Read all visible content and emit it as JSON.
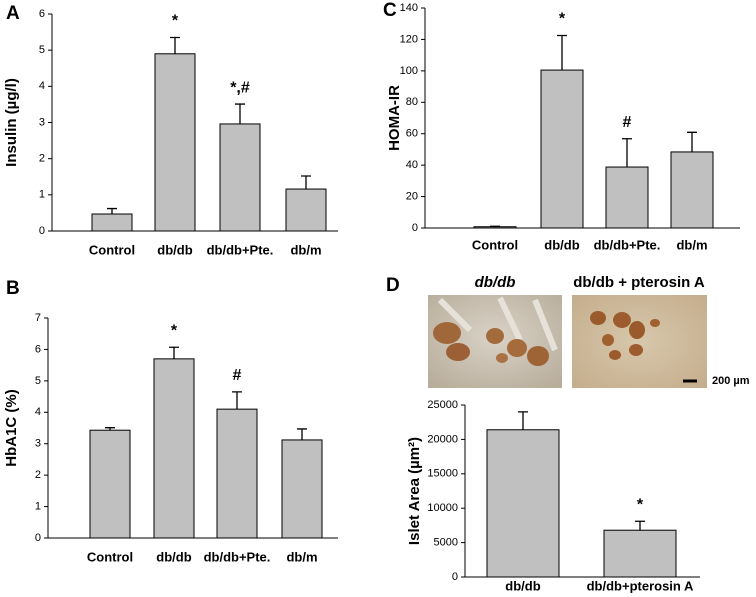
{
  "chart_data": [
    {
      "type": "bar",
      "panel_label": "A",
      "y_label": "Insulin (µg/l)",
      "categories": [
        "Control",
        "db/db",
        "db/db+Pte.",
        "db/m"
      ],
      "values": [
        0.47,
        4.9,
        2.96,
        1.16
      ],
      "errors": [
        0.15,
        0.45,
        0.55,
        0.36
      ],
      "annotations": [
        null,
        "*",
        "*,#",
        null
      ],
      "color": "#c0c0c0",
      "ylim": [
        0,
        6
      ],
      "yticks": [
        0,
        1,
        2,
        3,
        4,
        5,
        6
      ]
    },
    {
      "type": "bar",
      "panel_label": "B",
      "y_label": "HbA1C (%)",
      "categories": [
        "Control",
        "db/db",
        "db/db+Pte.",
        "db/m"
      ],
      "values": [
        3.43,
        5.7,
        4.1,
        3.12
      ],
      "errors": [
        0.08,
        0.37,
        0.55,
        0.35
      ],
      "annotations": [
        null,
        "*",
        "#",
        null
      ],
      "color": "#c0c0c0",
      "ylim": [
        0,
        7
      ],
      "yticks": [
        0,
        1,
        2,
        3,
        4,
        5,
        6,
        7
      ]
    },
    {
      "type": "bar",
      "panel_label": "C",
      "y_label": "HOMA-IR",
      "categories": [
        "Control",
        "db/db",
        "db/db+Pte.",
        "db/m"
      ],
      "values": [
        0.8,
        100.5,
        38.8,
        48.4
      ],
      "errors": [
        0.3,
        22,
        18,
        12.5
      ],
      "annotations": [
        null,
        "*",
        "#",
        null
      ],
      "color": "#c0c0c0",
      "ylim": [
        0,
        140
      ],
      "yticks": [
        0,
        20,
        40,
        60,
        80,
        100,
        120,
        140
      ]
    },
    {
      "type": "bar",
      "panel_label": "D",
      "y_label": "Islet Area (µm²)",
      "image_titles": [
        "db/db",
        "db/db + pterosin A"
      ],
      "scale_label": "200 µm",
      "categories": [
        "db/db",
        "db/db+pterosin A"
      ],
      "values": [
        21400,
        6800
      ],
      "errors": [
        2600,
        1300
      ],
      "annotations": [
        null,
        "*"
      ],
      "color": "#c0c0c0",
      "ylim": [
        0,
        25000
      ],
      "yticks": [
        0,
        5000,
        10000,
        15000,
        20000,
        25000
      ]
    }
  ]
}
